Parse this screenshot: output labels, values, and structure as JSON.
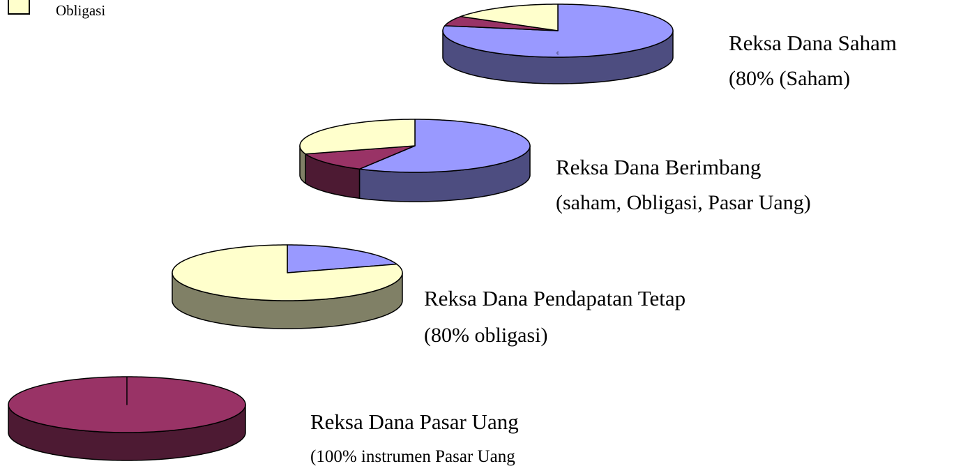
{
  "legend": {
    "label": "Obligasi",
    "color": "#ffffcc"
  },
  "chart_data": [
    {
      "type": "pie",
      "title": "Reksa Dana Saham",
      "subtitle": "(80% (Saham)",
      "annotation": "c",
      "values": [
        78,
        6,
        16
      ],
      "colors": [
        "#9999ff",
        "#993366",
        "#ffffcc"
      ]
    },
    {
      "type": "pie",
      "title": "Reksa Dana Berimbang",
      "subtitle": "(saham, Obligasi, Pasar Uang)",
      "values": [
        58,
        12,
        30
      ],
      "colors": [
        "#9999ff",
        "#993366",
        "#ffffcc"
      ]
    },
    {
      "type": "pie",
      "title": "Reksa Dana Pendapatan Tetap",
      "subtitle": "(80% obligasi)",
      "values": [
        20,
        80
      ],
      "colors": [
        "#9999ff",
        "#ffffcc"
      ]
    },
    {
      "type": "pie",
      "title": "Reksa Dana Pasar Uang",
      "subtitle": "(100% instrumen Pasar Uang",
      "values": [
        100
      ],
      "colors": [
        "#993366"
      ]
    }
  ]
}
